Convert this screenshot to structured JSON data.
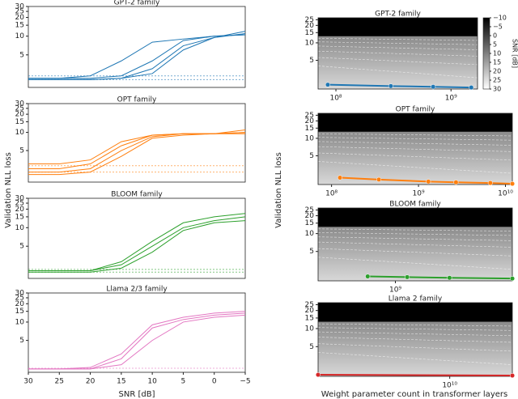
{
  "chart_data": [
    {
      "type": "line",
      "title": "GPT-2 family",
      "log_y": true,
      "xlim": [
        30,
        -5
      ],
      "ylim": [
        1.5,
        30
      ],
      "yticks": [
        5,
        10,
        15,
        20,
        25,
        30
      ],
      "x": [
        30,
        25,
        20,
        15,
        10,
        5,
        0,
        -5
      ],
      "series": [
        {
          "color": "#1f77b4",
          "values": [
            2.1,
            2.1,
            2.3,
            4,
            8,
            9,
            10,
            10.5
          ]
        },
        {
          "color": "#1f77b4",
          "values": [
            2.1,
            2.1,
            2.1,
            2.3,
            4,
            8.5,
            10,
            10.5
          ]
        },
        {
          "color": "#1f77b4",
          "values": [
            2.0,
            2.0,
            2.0,
            2.1,
            3,
            7,
            9.5,
            11
          ]
        },
        {
          "color": "#1f77b4",
          "values": [
            2.0,
            2.0,
            2.0,
            2.1,
            2.5,
            6,
            9.5,
            12
          ]
        },
        {
          "color": "#1f77b4",
          "dashed": true,
          "values": [
            2.3,
            2.3,
            2.3,
            2.3,
            2.3,
            2.3,
            2.3,
            2.3
          ]
        },
        {
          "color": "#1f77b4",
          "dashed": true,
          "values": [
            2.0,
            2.0,
            2.0,
            2.0,
            2.0,
            2.0,
            2.0,
            2.0
          ]
        }
      ]
    },
    {
      "type": "line",
      "title": "OPT family",
      "log_y": true,
      "xlim": [
        30,
        -5
      ],
      "ylim": [
        1.5,
        30
      ],
      "yticks": [
        5,
        10,
        15,
        20,
        25,
        30
      ],
      "x": [
        30,
        25,
        20,
        15,
        10,
        5,
        0,
        -5
      ],
      "series": [
        {
          "color": "#ff7f0e",
          "values": [
            3,
            3,
            3.5,
            7,
            9,
            9.5,
            9.5,
            10
          ]
        },
        {
          "color": "#ff7f0e",
          "values": [
            2.5,
            2.5,
            3,
            6,
            9,
            9.5,
            9.5,
            11
          ]
        },
        {
          "color": "#ff7f0e",
          "values": [
            2.2,
            2.2,
            2.5,
            5,
            8.5,
            9.5,
            9.5,
            10
          ]
        },
        {
          "color": "#ff7f0e",
          "values": [
            2,
            2,
            2.2,
            4,
            8,
            9,
            9.5,
            9.5
          ]
        },
        {
          "color": "#ff7f0e",
          "dashed": true,
          "values": [
            2.8,
            2.8,
            2.8,
            2.8,
            2.8,
            2.8,
            2.8,
            2.8
          ]
        },
        {
          "color": "#ff7f0e",
          "dashed": true,
          "values": [
            2.2,
            2.2,
            2.2,
            2.2,
            2.2,
            2.2,
            2.2,
            2.2
          ]
        }
      ]
    },
    {
      "type": "line",
      "title": "BLOOM family",
      "log_y": true,
      "xlim": [
        30,
        -5
      ],
      "ylim": [
        1.5,
        30
      ],
      "yticks": [
        5,
        10,
        15,
        20,
        25,
        30
      ],
      "x": [
        30,
        25,
        20,
        15,
        10,
        5,
        0,
        -5
      ],
      "series": [
        {
          "color": "#2ca02c",
          "values": [
            2,
            2,
            2,
            2.8,
            6,
            12,
            15,
            17
          ]
        },
        {
          "color": "#2ca02c",
          "values": [
            2,
            2,
            2,
            2.5,
            5,
            10,
            13,
            15
          ]
        },
        {
          "color": "#2ca02c",
          "values": [
            1.9,
            1.9,
            1.9,
            2.2,
            4,
            9,
            12,
            13
          ]
        },
        {
          "color": "#2ca02c",
          "dashed": true,
          "values": [
            2.1,
            2.1,
            2.1,
            2.1,
            2.1,
            2.1,
            2.1,
            2.1
          ]
        },
        {
          "color": "#2ca02c",
          "dashed": true,
          "values": [
            1.9,
            1.9,
            1.9,
            1.9,
            1.9,
            1.9,
            1.9,
            1.9
          ]
        }
      ]
    },
    {
      "type": "line",
      "title": "Llama 2/3 family",
      "log_y": true,
      "xlim": [
        30,
        -5
      ],
      "ylim": [
        1.5,
        30
      ],
      "yticks": [
        5,
        10,
        15,
        20,
        25,
        30
      ],
      "xticks": [
        30,
        25,
        20,
        15,
        10,
        5,
        0,
        {
          "value": -5,
          "label": "−5"
        }
      ],
      "x": [
        30,
        25,
        20,
        15,
        10,
        5,
        0,
        -5
      ],
      "series": [
        {
          "color": "#e377c2",
          "values": [
            1.7,
            1.7,
            1.8,
            3,
            9,
            12,
            14,
            15
          ]
        },
        {
          "color": "#e377c2",
          "values": [
            1.7,
            1.7,
            1.7,
            2.5,
            8,
            11,
            13,
            14
          ]
        },
        {
          "color": "#e377c2",
          "values": [
            1.7,
            1.7,
            1.7,
            2,
            5,
            10,
            12,
            13
          ]
        },
        {
          "color": "#e377c2",
          "dashed": true,
          "values": [
            1.75,
            1.75,
            1.75,
            1.75,
            1.75,
            1.75,
            1.75,
            1.75
          ]
        }
      ]
    },
    {
      "type": "scatter",
      "title": "GPT-2 family",
      "log_x": true,
      "log_y": true,
      "xlim": [
        70000000,
        1700000000
      ],
      "ylim": [
        1.6,
        27
      ],
      "yticks": [
        5,
        10,
        15,
        20,
        25
      ],
      "xticks": [
        {
          "value": 100000000,
          "label": "10⁸"
        },
        {
          "value": 1000000000,
          "label": "10⁹"
        }
      ],
      "x": [
        85000000,
        300000000,
        700000000,
        1500000000
      ],
      "series": [
        {
          "color": "#1f77b4",
          "values": [
            1.9,
            1.8,
            1.75,
            1.7
          ]
        }
      ],
      "colorbar": {
        "label": "SNR [dB]",
        "lim": [
          -10,
          30
        ],
        "ticks": [
          {
            "value": -10,
            "label": "−10"
          },
          {
            "value": -5,
            "label": "−5"
          },
          0,
          5,
          10,
          15,
          20,
          25,
          30
        ]
      }
    },
    {
      "type": "scatter",
      "title": "OPT family",
      "log_x": true,
      "log_y": true,
      "xlim": [
        70000000,
        12000000000
      ],
      "ylim": [
        1.6,
        27
      ],
      "yticks": [
        5,
        10,
        15,
        20,
        25
      ],
      "xticks": [
        {
          "value": 100000000,
          "label": "10⁸"
        },
        {
          "value": 1000000000,
          "label": "10⁹"
        },
        {
          "value": 10000000000,
          "label": "10¹⁰"
        }
      ],
      "x": [
        125000000,
        350000000,
        1300000000,
        2700000000,
        6700000000,
        12000000000
      ],
      "series": [
        {
          "color": "#ff7f0e",
          "values": [
            2.1,
            1.95,
            1.8,
            1.75,
            1.7,
            1.65
          ]
        }
      ]
    },
    {
      "type": "scatter",
      "title": "BLOOM family",
      "log_x": true,
      "log_y": true,
      "xlim": [
        400000000,
        4000000000
      ],
      "ylim": [
        1.6,
        27
      ],
      "yticks": [
        5,
        10,
        15,
        20,
        25
      ],
      "xticks": [
        {
          "value": 1000000000,
          "label": "10⁹"
        }
      ],
      "x": [
        720000000,
        1150000000,
        1900000000,
        4000000000
      ],
      "series": [
        {
          "color": "#2ca02c",
          "values": [
            1.9,
            1.85,
            1.8,
            1.75
          ]
        }
      ]
    },
    {
      "type": "scatter",
      "title": "Llama 2 family",
      "log_x": true,
      "log_y": true,
      "xlim": [
        2100000000,
        21000000000
      ],
      "ylim": [
        1.6,
        27
      ],
      "yticks": [
        5,
        10,
        15,
        20,
        25
      ],
      "xticks": [
        {
          "value": 10000000000,
          "label": "10¹⁰"
        }
      ],
      "x": [
        2100000000,
        21000000000
      ],
      "series": [
        {
          "color": "#d62728",
          "values": [
            1.7,
            1.65
          ]
        }
      ]
    }
  ],
  "labels": {
    "left_y": "Validation NLL loss",
    "left_x": "SNR [dB]",
    "right_y": "Validation NLL loss",
    "right_x": "Weight parameter count in transformer layers"
  }
}
